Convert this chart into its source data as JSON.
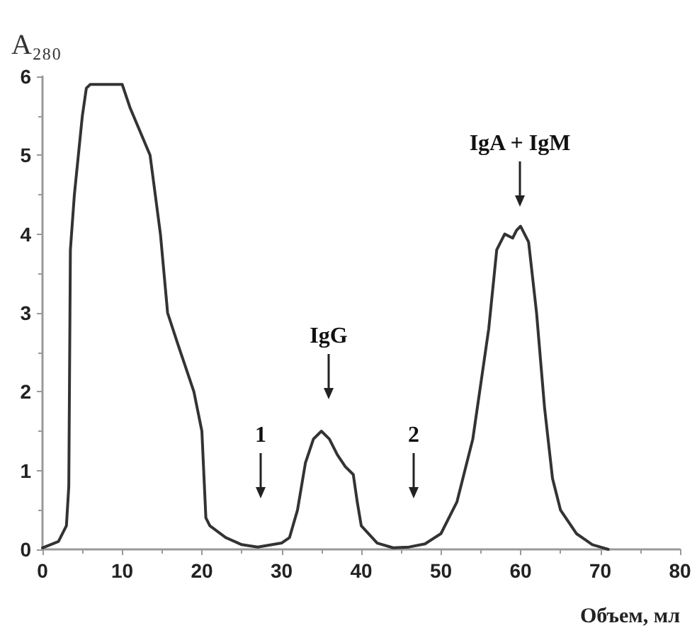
{
  "chart_data": {
    "type": "line",
    "xlabel": "Объем, мл",
    "ylabel": "A₂₈₀",
    "x": [
      0,
      2,
      3,
      3.3,
      3.5,
      4,
      5,
      5.5,
      6,
      10,
      11,
      13.5,
      14.8,
      15.7,
      17,
      19,
      20,
      20.5,
      21,
      23,
      25,
      27,
      30,
      31,
      32,
      33,
      34,
      35,
      36,
      37,
      38,
      39,
      39.5,
      40,
      42,
      44,
      46,
      48,
      50,
      52,
      54,
      56,
      57,
      58,
      59,
      59.5,
      60,
      61,
      62,
      63,
      64,
      65,
      67,
      69,
      70,
      71
    ],
    "series": [
      {
        "color": "#333333",
        "values": [
          0.02,
          0.1,
          0.3,
          0.8,
          3.8,
          4.5,
          5.5,
          5.85,
          5.9,
          5.9,
          5.6,
          5.0,
          4.0,
          3.0,
          2.6,
          2.0,
          1.5,
          0.4,
          0.3,
          0.15,
          0.06,
          0.03,
          0.08,
          0.15,
          0.5,
          1.1,
          1.4,
          1.5,
          1.4,
          1.2,
          1.05,
          0.95,
          0.6,
          0.3,
          0.08,
          0.02,
          0.03,
          0.07,
          0.2,
          0.6,
          1.4,
          2.8,
          3.8,
          4.0,
          3.95,
          4.05,
          4.1,
          3.9,
          3.0,
          1.8,
          0.9,
          0.5,
          0.2,
          0.06,
          0.03,
          0.0
        ]
      }
    ],
    "xlim": [
      0,
      80
    ],
    "xticks": [
      0,
      10,
      20,
      30,
      40,
      50,
      60,
      70,
      80
    ],
    "ylim": [
      0,
      6
    ],
    "yticks": [
      0,
      1,
      2,
      3,
      4,
      5,
      6
    ],
    "annotations": [
      "1",
      "IgG",
      "2",
      "IgA + IgM"
    ],
    "grid": false,
    "marker": "none",
    "line_style": "solid"
  }
}
